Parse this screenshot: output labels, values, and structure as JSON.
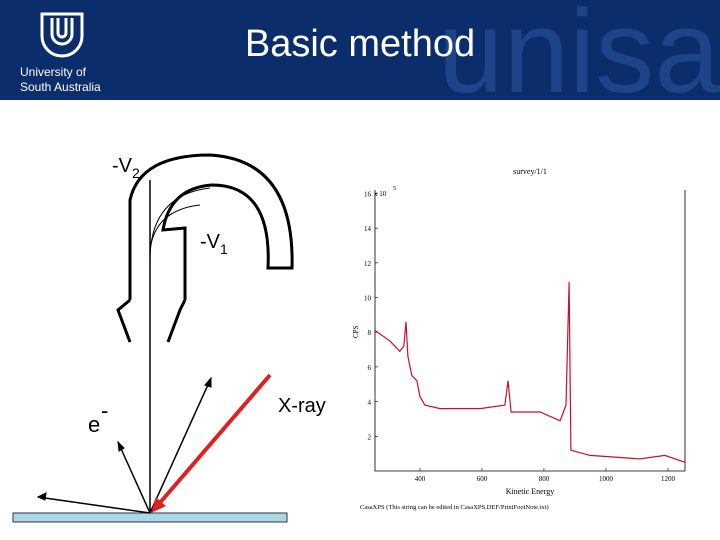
{
  "header": {
    "university": [
      "University of",
      "South Australia"
    ],
    "title": "Basic method",
    "watermark": "unisa"
  },
  "diagram": {
    "labels": {
      "v2": "-V",
      "v2_sub": "2",
      "v1": "-V",
      "v1_sub": "1",
      "electron": "e",
      "electron_sup": "-",
      "xray": "X-ray"
    }
  },
  "spectrum": {
    "type": "line",
    "title": "survey/1/1",
    "y_multiplier": "x 10",
    "y_exponent": "5",
    "ylabel": "CPS",
    "xlabel": "Kinetic Energy",
    "footnote": "CasaXPS (This string can be edited in CasaXPS.DEF/PrintFootNote.txt)",
    "color": "#c8102e",
    "x": [
      255,
      303,
      335,
      348,
      355,
      361,
      374,
      390,
      400,
      416,
      465,
      594,
      674,
      684,
      694,
      787,
      852,
      871,
      881,
      887,
      949,
      1110,
      1190,
      1255
    ],
    "values": [
      8.1,
      7.5,
      6.9,
      7.2,
      8.6,
      6.6,
      5.5,
      5.2,
      4.3,
      3.8,
      3.6,
      3.6,
      3.8,
      5.2,
      3.4,
      3.4,
      2.9,
      3.8,
      10.9,
      1.2,
      0.9,
      0.7,
      0.9,
      0.5
    ],
    "xlim": [
      255,
      1255
    ],
    "ylim": [
      0,
      16.2
    ],
    "xticks": [
      400,
      600,
      800,
      1000,
      1200
    ],
    "yticks": [
      2,
      4,
      6,
      8,
      10,
      12,
      14,
      16
    ]
  }
}
